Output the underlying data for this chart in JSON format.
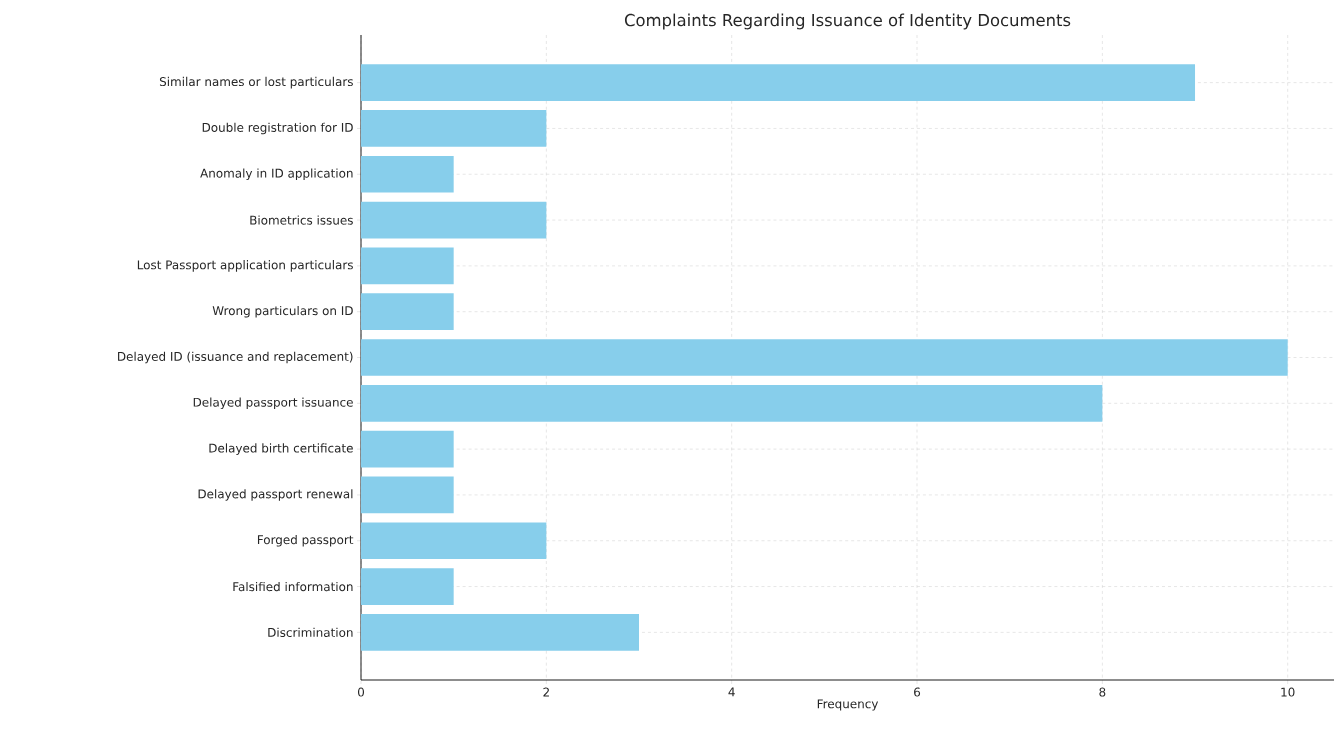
{
  "chart_data": {
    "type": "bar",
    "orientation": "horizontal",
    "title": "Complaints Regarding Issuance of Identity Documents",
    "xlabel": "Frequency",
    "categories": [
      "Similar names or lost particulars",
      "Double registration for ID",
      "Anomaly in ID application",
      "Biometrics issues",
      "Lost Passport application particulars",
      "Wrong particulars on ID",
      "Delayed ID (issuance and replacement)",
      "Delayed passport issuance",
      "Delayed birth certificate",
      "Delayed passport renewal",
      "Forged passport",
      "Falsified information",
      "Discrimination"
    ],
    "values": [
      9,
      2,
      1,
      2,
      1,
      1,
      10,
      8,
      1,
      1,
      2,
      1,
      3
    ],
    "color": "#87ceeb",
    "xlim": [
      0,
      10.5
    ],
    "xticks": [
      0,
      2,
      4,
      6,
      8,
      10
    ],
    "grid": true
  }
}
